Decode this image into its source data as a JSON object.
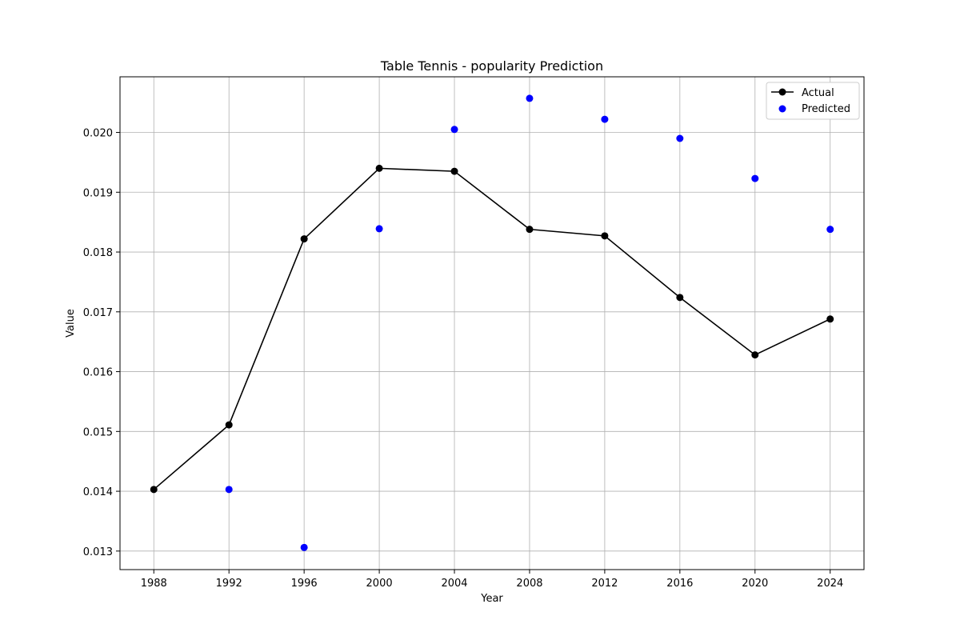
{
  "chart_data": {
    "type": "line",
    "title": "Table Tennis - popularity Prediction",
    "xlabel": "Year",
    "ylabel": "Value",
    "x": [
      1988,
      1992,
      1996,
      2000,
      2004,
      2008,
      2012,
      2016,
      2020,
      2024
    ],
    "xlim": [
      1986.2,
      2025.8
    ],
    "ylim": [
      0.01269,
      0.02093
    ],
    "xticks": [
      1988,
      1992,
      1996,
      2000,
      2004,
      2008,
      2012,
      2016,
      2020,
      2024
    ],
    "yticks": [
      0.013,
      0.014,
      0.015,
      0.016,
      0.017,
      0.018,
      0.019,
      0.02
    ],
    "ytick_labels": [
      "0.013",
      "0.014",
      "0.015",
      "0.016",
      "0.017",
      "0.018",
      "0.019",
      "0.020"
    ],
    "grid": true,
    "legend_position": "top-right",
    "series": [
      {
        "name": "Actual",
        "kind": "line-marker",
        "color": "#000000",
        "x": [
          1988,
          1992,
          1996,
          2000,
          2004,
          2008,
          2012,
          2016,
          2020,
          2024
        ],
        "values": [
          0.01403,
          0.01511,
          0.01822,
          0.0194,
          0.01935,
          0.01838,
          0.01827,
          0.01724,
          0.01628,
          0.01688
        ]
      },
      {
        "name": "Predicted",
        "kind": "scatter",
        "color": "#0000ff",
        "x": [
          1992,
          1996,
          2000,
          2004,
          2008,
          2012,
          2016,
          2020,
          2024
        ],
        "values": [
          0.01403,
          0.01306,
          0.01839,
          0.02005,
          0.02057,
          0.02022,
          0.0199,
          0.01923,
          0.01838
        ]
      }
    ]
  }
}
